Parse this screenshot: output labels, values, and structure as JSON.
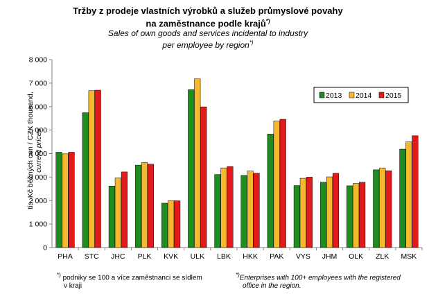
{
  "title_cz_line1": "Tržby z prodeje vlastních výrobků  a služeb průmyslové povahy",
  "title_cz_line2": "na zaměstnance  podle krajů",
  "title_en_line1": "Sales of own goods and services incidental to industry",
  "title_en_line2": "per employee by region",
  "footnote_marker": "*)",
  "footnote_cz_line1": "podniky se 100 a více zaměstnanci se sídlem",
  "footnote_cz_line2": "v kraji",
  "footnote_en_line1": "Enterprises with 100+ employees with the registered",
  "footnote_en_line2": "office in the region.",
  "chart_data": {
    "type": "bar",
    "ylabel_line1": "tis. Kč běžných cen / CZK thousand,",
    "ylabel_line2": "current prices",
    "ylim": [
      0,
      8000
    ],
    "yticks": [
      "0",
      "1 000",
      "2 000",
      "3 000",
      "4 000",
      "5 000",
      "6 000",
      "7 000",
      "8 000"
    ],
    "grid": false,
    "legend_position": "top-right",
    "categories": [
      "PHA",
      "STC",
      "JHC",
      "PLK",
      "KVK",
      "ULK",
      "LBK",
      "HKK",
      "PAK",
      "VYS",
      "JHM",
      "OLK",
      "ZLK",
      "MSK"
    ],
    "series": [
      {
        "name": "2013",
        "color": "#1f8c1f",
        "values": [
          4060,
          5740,
          2620,
          3510,
          1890,
          6720,
          3110,
          3070,
          4830,
          2640,
          2780,
          2630,
          3310,
          4190
        ]
      },
      {
        "name": "2014",
        "color": "#f5b82e",
        "values": [
          3990,
          6680,
          2960,
          3620,
          1990,
          7180,
          3390,
          3260,
          5390,
          2950,
          3010,
          2730,
          3390,
          4500
        ]
      },
      {
        "name": "2015",
        "color": "#e31a1c",
        "values": [
          4060,
          6700,
          3220,
          3550,
          1990,
          5990,
          3450,
          3160,
          5460,
          3000,
          3160,
          2780,
          3270,
          4760
        ]
      }
    ]
  }
}
